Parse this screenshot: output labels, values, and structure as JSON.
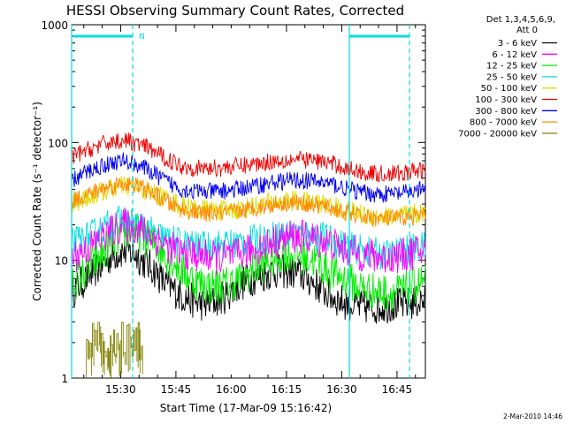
{
  "chart_data": {
    "type": "line",
    "title": "HESSI Observing Summary Count Rates, Corrected",
    "xlabel": "Start Time (17-Mar-09 15:16:42)",
    "ylabel": "Corrected Count Rate (s⁻¹ detector⁻¹)",
    "yscale": "log",
    "ylim": [
      1,
      1000
    ],
    "xlim_minutes": [
      0,
      96
    ],
    "x_ticks": [
      {
        "label": "15:30",
        "minute": 13.3
      },
      {
        "label": "15:45",
        "minute": 28.3
      },
      {
        "label": "16:00",
        "minute": 43.3
      },
      {
        "label": "16:15",
        "minute": 58.3
      },
      {
        "label": "16:30",
        "minute": 73.3
      },
      {
        "label": "16:45",
        "minute": 88.3
      }
    ],
    "y_ticks": [
      {
        "label": "1",
        "value": 1
      },
      {
        "label": "10",
        "value": 10
      },
      {
        "label": "100",
        "value": 100
      },
      {
        "label": "1000",
        "value": 1000
      }
    ],
    "legend_header": [
      "Det 1,3,4,5,6,9,",
      "Att 0"
    ],
    "legend_position": "right",
    "series": [
      {
        "name": "3 - 6 keV",
        "color": "#000000",
        "noise": 0.05,
        "logx": [
          0,
          3,
          6,
          9,
          11,
          14,
          17,
          19,
          22,
          25,
          28,
          30,
          33,
          36,
          39,
          42,
          45,
          48,
          52,
          55,
          58,
          61,
          64,
          67,
          70,
          73,
          76,
          78,
          81,
          84,
          87,
          90,
          92,
          95
        ],
        "values": [
          5.5,
          6.5,
          8,
          9.5,
          11,
          12,
          11.5,
          10,
          8.5,
          6.5,
          5.5,
          5,
          4.5,
          4.2,
          4.5,
          5,
          6,
          6.8,
          7.5,
          8,
          8,
          7.8,
          7,
          6,
          5,
          4.5,
          4.2,
          4,
          4,
          4,
          4.2,
          4.2,
          4.3,
          4.5
        ]
      },
      {
        "name": "6 - 12 keV",
        "color": "#ff00ff",
        "noise": 0.05,
        "logx": [
          0,
          5,
          10,
          14,
          18,
          22,
          26,
          30,
          35,
          40,
          45,
          50,
          55,
          60,
          65,
          70,
          75,
          80,
          85,
          90,
          95
        ],
        "values": [
          10.5,
          13,
          17,
          20,
          19,
          16,
          13,
          11.5,
          11,
          10.5,
          11,
          12.5,
          14.5,
          16,
          15.5,
          14,
          12,
          11,
          10.5,
          11,
          12
        ]
      },
      {
        "name": "12 - 25 keV",
        "color": "#00ee00",
        "noise": 0.055,
        "logx": [
          0,
          4,
          8,
          12,
          15,
          18,
          22,
          26,
          30,
          34,
          38,
          42,
          46,
          50,
          54,
          58,
          62,
          66,
          70,
          74,
          78,
          82,
          86,
          90,
          95
        ],
        "values": [
          6.5,
          8,
          11,
          15,
          18,
          17,
          14,
          11,
          8,
          6.5,
          6,
          6.2,
          7,
          8.5,
          10,
          11.5,
          11,
          10,
          8,
          7,
          6,
          5.5,
          5.3,
          5.5,
          6.5
        ]
      },
      {
        "name": "25 - 50 keV",
        "color": "#00dddd",
        "noise": 0.045,
        "logx": [
          0,
          5,
          10,
          14,
          18,
          22,
          26,
          30,
          35,
          40,
          45,
          50,
          55,
          60,
          65,
          70,
          75,
          80,
          85,
          90,
          95
        ],
        "values": [
          14,
          16,
          20,
          22,
          20,
          17,
          15,
          14,
          13,
          13.5,
          14,
          15,
          16,
          17,
          16.5,
          15,
          13,
          12,
          11,
          12,
          13
        ]
      },
      {
        "name": "50 - 100 keV",
        "color": "#dddd00",
        "noise": 0.03,
        "logx": [
          0,
          5,
          10,
          14,
          18,
          22,
          26,
          30,
          35,
          40,
          45,
          50,
          55,
          60,
          65,
          70,
          75,
          80,
          85,
          90,
          95
        ],
        "values": [
          30,
          35,
          40,
          43,
          41,
          37,
          33,
          29,
          27,
          26.5,
          27,
          29,
          31,
          32,
          31,
          29,
          26,
          24,
          23.5,
          24,
          25
        ]
      },
      {
        "name": "100 - 300 keV",
        "color": "#ee0000",
        "noise": 0.025,
        "logx": [
          0,
          5,
          10,
          14,
          18,
          22,
          26,
          30,
          35,
          40,
          45,
          50,
          55,
          60,
          65,
          70,
          75,
          80,
          85,
          90,
          95
        ],
        "values": [
          75,
          88,
          100,
          105,
          97,
          85,
          72,
          63,
          60,
          61,
          63,
          66,
          70,
          72,
          71,
          67,
          60,
          55,
          54,
          55,
          58
        ]
      },
      {
        "name": "300 - 800 keV",
        "color": "#0000ee",
        "noise": 0.025,
        "logx": [
          0,
          5,
          10,
          14,
          18,
          22,
          26,
          30,
          35,
          40,
          45,
          50,
          55,
          60,
          65,
          70,
          75,
          80,
          85,
          90,
          95
        ],
        "values": [
          47,
          58,
          66,
          70,
          65,
          55,
          46,
          40,
          38,
          38.5,
          40,
          43,
          46,
          48,
          47,
          45,
          40,
          37,
          36.5,
          37,
          40
        ]
      },
      {
        "name": "800 - 7000 keV",
        "color": "#ff8800",
        "noise": 0.025,
        "logx": [
          0,
          5,
          10,
          14,
          18,
          22,
          26,
          30,
          35,
          40,
          45,
          50,
          55,
          60,
          65,
          70,
          75,
          80,
          85,
          90,
          95
        ],
        "values": [
          32,
          37,
          42,
          45,
          43,
          37,
          31,
          27,
          25,
          25,
          26,
          28,
          30,
          31,
          30,
          28,
          25,
          23,
          22.5,
          23,
          24
        ]
      },
      {
        "name": "7000 - 20000 keV",
        "color": "#808000",
        "noise": 0,
        "logx": [],
        "values": []
      }
    ],
    "n_marker_label": "N"
  },
  "footer": {
    "timestamp": "2-Mar-2010 14:46"
  }
}
